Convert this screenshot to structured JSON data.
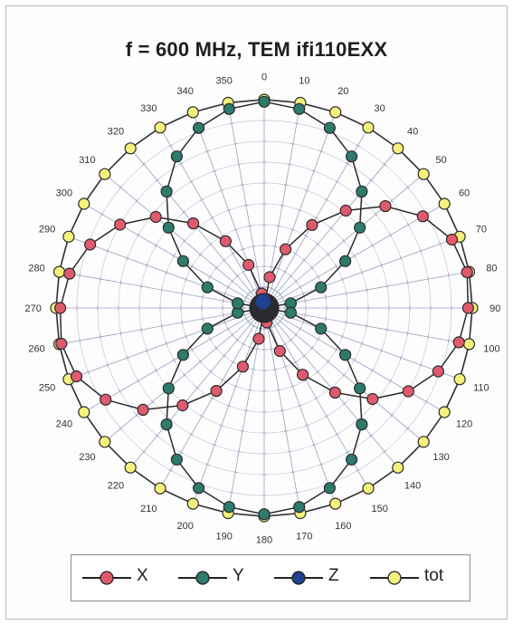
{
  "chart_data": {
    "type": "polar-line",
    "title": "f = 600 MHz, TEM ifi110EXX",
    "angle_labels": [
      "0",
      "10",
      "20",
      "30",
      "40",
      "50",
      "60",
      "70",
      "80",
      "90",
      "100",
      "110",
      "120",
      "130",
      "140",
      "150",
      "160",
      "170",
      "180",
      "190",
      "200",
      "210",
      "220",
      "230",
      "240",
      "250",
      "260",
      "270",
      "280",
      "290",
      "300",
      "310",
      "320",
      "330",
      "340",
      "350"
    ],
    "radial_range": [
      0,
      1
    ],
    "grid": true,
    "legend_position": "bottom",
    "angles_deg": [
      0,
      10,
      20,
      30,
      40,
      50,
      60,
      70,
      80,
      90,
      100,
      110,
      120,
      130,
      140,
      150,
      160,
      170,
      180,
      190,
      200,
      210,
      220,
      230,
      240,
      250,
      260,
      270,
      280,
      290,
      300,
      310,
      320,
      330,
      340,
      350
    ],
    "series": [
      {
        "name": "X",
        "color": "#e05a6e",
        "values": [
          0.0,
          0.15,
          0.3,
          0.46,
          0.61,
          0.76,
          0.88,
          0.96,
          0.99,
          0.98,
          0.95,
          0.89,
          0.8,
          0.68,
          0.53,
          0.37,
          0.22,
          0.07,
          0.0,
          0.15,
          0.3,
          0.46,
          0.61,
          0.76,
          0.88,
          0.96,
          0.99,
          0.98,
          0.95,
          0.89,
          0.8,
          0.68,
          0.53,
          0.37,
          0.22,
          0.07
        ]
      },
      {
        "name": "Y",
        "color": "#2e7b6c",
        "values": [
          0.99,
          0.97,
          0.92,
          0.84,
          0.73,
          0.6,
          0.45,
          0.29,
          0.13,
          0.0,
          0.13,
          0.29,
          0.45,
          0.6,
          0.73,
          0.84,
          0.92,
          0.97,
          0.99,
          0.97,
          0.92,
          0.84,
          0.73,
          0.6,
          0.45,
          0.29,
          0.13,
          0.0,
          0.13,
          0.29,
          0.45,
          0.6,
          0.73,
          0.84,
          0.92,
          0.97
        ]
      },
      {
        "name": "Z",
        "color": "#1f3f8f",
        "values": [
          0.03,
          0.03,
          0.03,
          0.03,
          0.03,
          0.03,
          0.03,
          0.03,
          0.03,
          0.03,
          0.03,
          0.03,
          0.03,
          0.03,
          0.03,
          0.03,
          0.03,
          0.03,
          0.03,
          0.03,
          0.03,
          0.03,
          0.03,
          0.03,
          0.03,
          0.03,
          0.03,
          0.03,
          0.03,
          0.03,
          0.03,
          0.03,
          0.03,
          0.03,
          0.03,
          0.03
        ]
      },
      {
        "name": "tot",
        "color": "#f4f27c",
        "values": [
          1,
          1,
          1,
          1,
          1,
          1,
          1,
          1,
          1,
          1,
          1,
          1,
          1,
          1,
          1,
          1,
          1,
          1,
          1,
          1,
          1,
          1,
          1,
          1,
          1,
          1,
          1,
          1,
          1,
          1,
          1,
          1,
          1,
          1,
          1,
          1
        ]
      }
    ]
  }
}
